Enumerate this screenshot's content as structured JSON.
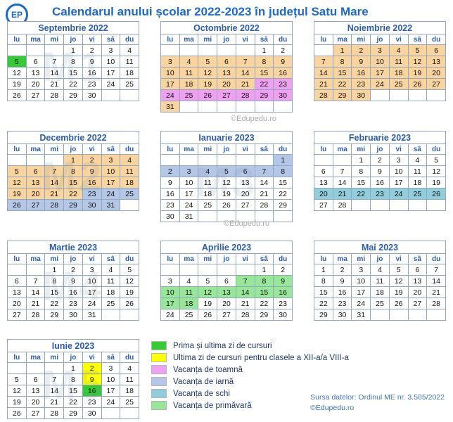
{
  "header": {
    "logo_text": "EP",
    "title": "Calendarul anului școlar 2022-2023 în județul Satu Mare"
  },
  "day_names": [
    "lu",
    "ma",
    "mi",
    "jo",
    "vi",
    "sâ",
    "du"
  ],
  "colors": {
    "grn": "#33CC33",
    "yel": "#FFFF00",
    "aut": "#F0A0F0",
    "win": "#B4C7E7",
    "ski": "#92CDDC",
    "spr": "#98E698",
    "crs": "#FAD49E",
    "red": "#EE1111",
    "gry": "#999999",
    "title": "#1B6AC9",
    "mblue": "#2A5DB0",
    "border": "#8FA8BF",
    "legend": "#1F3864",
    "footer": "#4472C4",
    "credit": "#2E75B6",
    "wm": "#A9A9A9",
    "modwm": "#7A8AA0"
  },
  "months": [
    {
      "name": "Septembrie 2022",
      "module": "M1",
      "weeks": [
        [
          "",
          "",
          "",
          "1||",
          "2||",
          "3||gry",
          "4||red"
        ],
        [
          "5|grn|",
          "6||",
          "7||",
          "8||",
          "9||",
          "10||gry",
          "11||red"
        ],
        [
          "12||",
          "13||",
          "14||",
          "15||",
          "16||",
          "17||gry",
          "18||red"
        ],
        [
          "19||",
          "20||",
          "21||",
          "22||",
          "23||",
          "24||gry",
          "25||red"
        ],
        [
          "26||",
          "27||",
          "28||",
          "29||",
          "30||",
          "",
          ""
        ]
      ]
    },
    {
      "name": "Octombrie 2022",
      "module": "",
      "weeks": [
        [
          "",
          "",
          "",
          "",
          "",
          "1||gry",
          "2||red"
        ],
        [
          "3|crs|",
          "4|crs|",
          "5|crs|",
          "6|crs|",
          "7|crs|",
          "8|crs|gry",
          "9|crs|red"
        ],
        [
          "10|crs|",
          "11|crs|",
          "12|crs|",
          "13|crs|",
          "14|crs|",
          "15|crs|gry",
          "16|crs|red"
        ],
        [
          "17|crs|",
          "18|crs|",
          "19|crs|",
          "20|crs|",
          "21|crs|",
          "22|aut|gry",
          "23|aut|red"
        ],
        [
          "24|aut|",
          "25|aut|",
          "26|aut|",
          "27|aut|",
          "28|aut|",
          "29|aut|gry",
          "30|aut|red"
        ],
        [
          "31|crs|",
          "",
          "",
          "",
          "",
          "",
          ""
        ]
      ]
    },
    {
      "name": "Noiembrie 2022",
      "module": "",
      "weeks": [
        [
          "",
          "1|crs|",
          "2|crs|",
          "3|crs|",
          "4|crs|",
          "5|crs|gry",
          "6|crs|red"
        ],
        [
          "7|crs|",
          "8|crs|",
          "9|crs|",
          "10|crs|",
          "11|crs|",
          "12|crs|gry",
          "13|crs|red"
        ],
        [
          "14|crs|",
          "15|crs|",
          "16|crs|",
          "17|crs|",
          "18|crs|",
          "19|crs|gry",
          "20|crs|red"
        ],
        [
          "21|crs|",
          "22|crs|",
          "23|crs|",
          "24|crs|",
          "25|crs|",
          "26|crs|gry",
          "27|crs|red"
        ],
        [
          "28|crs|",
          "29|crs|",
          "30|crs|red",
          "",
          "",
          "",
          ""
        ]
      ]
    },
    {
      "name": "Decembrie 2022",
      "module": "M2",
      "weeks": [
        [
          "",
          "",
          "",
          "1|crs|red",
          "2|crs|",
          "3|crs|gry",
          "4|crs|red"
        ],
        [
          "5|crs|",
          "6|crs|",
          "7|crs|",
          "8|crs|",
          "9|crs|",
          "10|crs|gry",
          "11|crs|red"
        ],
        [
          "12|crs|",
          "13|crs|",
          "14|crs|",
          "15|crs|",
          "16|crs|",
          "17|crs|gry",
          "18|crs|red"
        ],
        [
          "19|crs|",
          "20|crs|",
          "21|crs|",
          "22|crs|",
          "23|win|",
          "24|win|gry",
          "25|win|red"
        ],
        [
          "26|win|red",
          "27|win|",
          "28|win|",
          "29|win|",
          "30|win|",
          "31|win|gry",
          ""
        ]
      ]
    },
    {
      "name": "Ianuarie 2023",
      "module": "M3",
      "weeks": [
        [
          "",
          "",
          "",
          "",
          "",
          "",
          "1|win|red"
        ],
        [
          "2|win|red",
          "3|win|",
          "4|win|",
          "5|win|",
          "6|win|",
          "7|win|gry",
          "8|win|red"
        ],
        [
          "9||",
          "10||",
          "11||",
          "12||",
          "13||",
          "14||gry",
          "15||red"
        ],
        [
          "16||",
          "17||",
          "18||",
          "19||",
          "20||",
          "21||gry",
          "22||red"
        ],
        [
          "23||",
          "24||red",
          "25||",
          "26||",
          "27||",
          "28||gry",
          "29||red"
        ],
        [
          "30||",
          "31||",
          "",
          "",
          "",
          "",
          ""
        ]
      ]
    },
    {
      "name": "Februarie 2023",
      "module": "",
      "weeks": [
        [
          "",
          "",
          "1||",
          "2||",
          "3||",
          "4||gry",
          "5||red"
        ],
        [
          "6||",
          "7||",
          "8||",
          "9||",
          "10||",
          "11||gry",
          "12||red"
        ],
        [
          "13||",
          "14||",
          "15||",
          "16||",
          "17||",
          "18||gry",
          "19||red"
        ],
        [
          "20|ski|",
          "21|ski|",
          "22|ski|",
          "23|ski|",
          "24|ski|",
          "25|ski|gry",
          "26|ski|red"
        ],
        [
          "27||",
          "28||",
          "",
          "",
          "",
          "",
          ""
        ]
      ]
    },
    {
      "name": "Martie 2023",
      "module": "M4",
      "weeks": [
        [
          "",
          "",
          "1||",
          "2||",
          "3||",
          "4||gry",
          "5||red"
        ],
        [
          "6||",
          "7||",
          "8||",
          "9||",
          "10||",
          "11||gry",
          "12||red"
        ],
        [
          "13||",
          "14||",
          "15||",
          "16||",
          "17||",
          "18||gry",
          "19||red"
        ],
        [
          "20||",
          "21||",
          "22||",
          "23||",
          "24||",
          "25||gry",
          "26||red"
        ],
        [
          "27||",
          "28||",
          "29||",
          "30||",
          "31||",
          "",
          ""
        ]
      ]
    },
    {
      "name": "Aprilie 2023",
      "module": "",
      "weeks": [
        [
          "",
          "",
          "",
          "",
          "",
          "1||gry",
          "2||red"
        ],
        [
          "3||",
          "4||",
          "5||",
          "6||",
          "7|spr|",
          "8|spr|gry",
          "9|spr|red"
        ],
        [
          "10|spr|",
          "11|spr|",
          "12|spr|",
          "13|spr|",
          "14|spr|red",
          "15|spr|gry",
          "16|spr|red"
        ],
        [
          "17|spr|red",
          "18|spr|",
          "19||",
          "20||",
          "21||",
          "22||gry",
          "23||red"
        ],
        [
          "24||",
          "25||",
          "26||",
          "27||",
          "28||",
          "29||gry",
          "30||red"
        ]
      ]
    },
    {
      "name": "Mai 2023",
      "module": "",
      "weeks": [
        [
          "1||red",
          "2||",
          "3||",
          "4||",
          "5||",
          "6||gry",
          "7||red"
        ],
        [
          "8||",
          "9||",
          "10||",
          "11||",
          "12||",
          "13||gry",
          "14||red"
        ],
        [
          "15||",
          "16||",
          "17||",
          "18||",
          "19||",
          "20||gry",
          "21||red"
        ],
        [
          "22||",
          "23||",
          "24||",
          "25||",
          "26||",
          "27||gry",
          "28||red"
        ],
        [
          "29||",
          "30||",
          "31||",
          "",
          "",
          "",
          ""
        ]
      ]
    },
    {
      "name": "Iunie 2023",
      "module": "M5",
      "weeks": [
        [
          "",
          "",
          "",
          "1||red",
          "2|yel|",
          "3||gry",
          "4||red"
        ],
        [
          "5||red",
          "6||",
          "7||",
          "8||",
          "9|yel|",
          "10||gry",
          "11||red"
        ],
        [
          "12||",
          "13||",
          "14||",
          "15||",
          "16|grn|",
          "17||gry",
          "18||red"
        ],
        [
          "19||",
          "20||",
          "21||",
          "22||",
          "23||",
          "24||gry",
          "25||red"
        ],
        [
          "26||",
          "27||",
          "28||",
          "29||",
          "30||",
          "",
          ""
        ]
      ]
    }
  ],
  "legend": {
    "items": [
      {
        "key": "grn",
        "label": "Prima și ultima zi de cursuri"
      },
      {
        "key": "yel",
        "label": "Ultima zi de cursuri pentru clasele a XII-a/a VIII-a"
      },
      {
        "key": "aut",
        "label": "Vacanța de toamnă"
      },
      {
        "key": "win",
        "label": "Vacanța de iarnă"
      },
      {
        "key": "ski",
        "label": "Vacanța de schi"
      },
      {
        "key": "spr",
        "label": "Vacanța de primăvară"
      }
    ]
  },
  "watermarks": [
    "©Edupedu.ro",
    "©Edupedu.ro"
  ],
  "footer": {
    "source": "Sursa datelor: Ordinul ME nr. 3.505/2022",
    "credit": "©Edupedu.ro"
  }
}
